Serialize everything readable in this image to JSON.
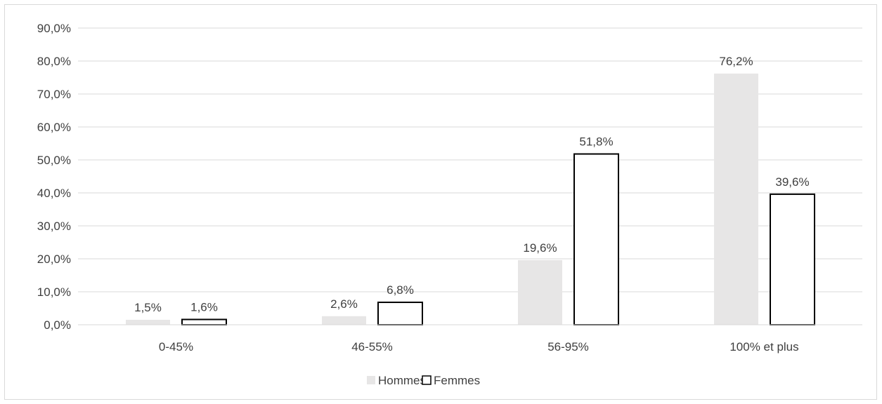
{
  "chart_data": {
    "type": "bar",
    "categories": [
      "0-45%",
      "46-55%",
      "56-95%",
      "100% et plus"
    ],
    "series": [
      {
        "name": "Hommes",
        "values": [
          1.5,
          2.6,
          19.6,
          76.2
        ],
        "labels": [
          "1,5%",
          "2,6%",
          "19,6%",
          "76,2%"
        ],
        "fill": "#e7e6e6",
        "stroke": "none"
      },
      {
        "name": "Femmes",
        "values": [
          1.6,
          6.8,
          51.8,
          39.6
        ],
        "labels": [
          "1,6%",
          "6,8%",
          "51,8%",
          "39,6%"
        ],
        "fill": "#ffffff",
        "stroke": "#000000"
      }
    ],
    "ylim": [
      0,
      90
    ],
    "yticks": [
      0,
      10,
      20,
      30,
      40,
      50,
      60,
      70,
      80,
      90
    ],
    "ytick_labels": [
      "0,0%",
      "10,0%",
      "20,0%",
      "30,0%",
      "40,0%",
      "50,0%",
      "60,0%",
      "70,0%",
      "80,0%",
      "90,0%"
    ],
    "title": "",
    "xlabel": "",
    "ylabel": "",
    "grid": true,
    "gridline_color": "#d9d9d9",
    "legend_position": "bottom"
  }
}
